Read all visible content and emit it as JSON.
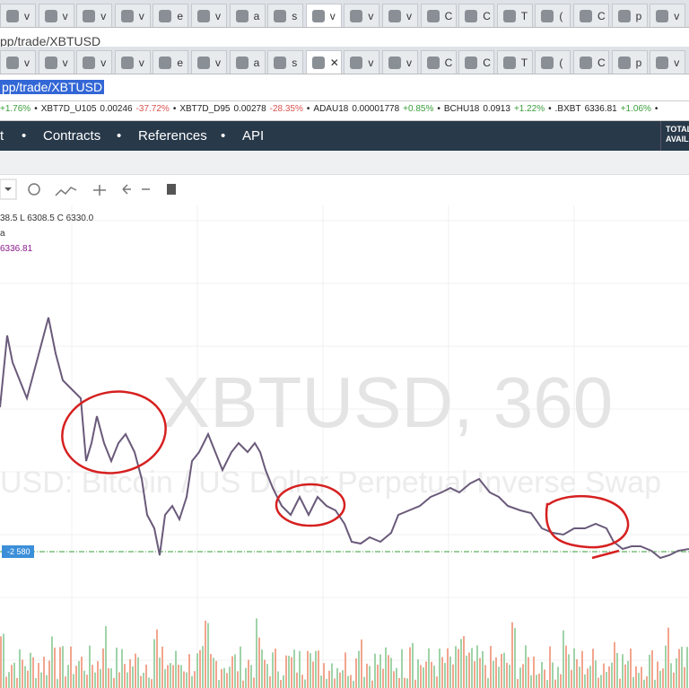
{
  "tab_rows": [
    {
      "tabs": [
        "v",
        "v",
        "v",
        "v",
        "e",
        "v",
        "a",
        "s",
        "v",
        "v",
        "v",
        "C",
        "C",
        "T",
        "(",
        "C",
        "p",
        "v"
      ]
    },
    {
      "tabs": [
        "v",
        "v",
        "v",
        "v",
        "e",
        "v",
        "a",
        "s",
        "✕",
        "v",
        "v",
        "C",
        "C",
        "T",
        "(",
        "C",
        "p",
        "v"
      ]
    }
  ],
  "url_plain": "pp/trade/XBTUSD",
  "address": "pp/trade/XBTUSD",
  "ticker": [
    {
      "change": "+1.76%"
    },
    {
      "symbol": "XBT7D_U105",
      "price": "0.00246",
      "change": "-37.72%"
    },
    {
      "symbol": "XBT7D_D95",
      "price": "0.00278",
      "change": "-28.35%"
    },
    {
      "symbol": "ADAU18",
      "price": "0.00001778",
      "change": "+0.85%"
    },
    {
      "symbol": "BCHU18",
      "price": "0.0913",
      "change": "+1.22%"
    },
    {
      "symbol": ".BXBT",
      "price": "6336.81",
      "change": "+1.06%"
    }
  ],
  "nav": [
    "t",
    "Contracts",
    "References",
    "API"
  ],
  "account": [
    "TOTAL",
    "AVAIL"
  ],
  "chart": {
    "ohlc": "38.5  L 6308.5  C 6330.0",
    "series_label": "a",
    "index_value": "6336.81",
    "watermark_title": "XBTUSD, 360",
    "watermark_subtitle": "USD: Bitcoin / US Dollar Perpetual Inverse Swap",
    "price_label": "-2 580"
  }
}
